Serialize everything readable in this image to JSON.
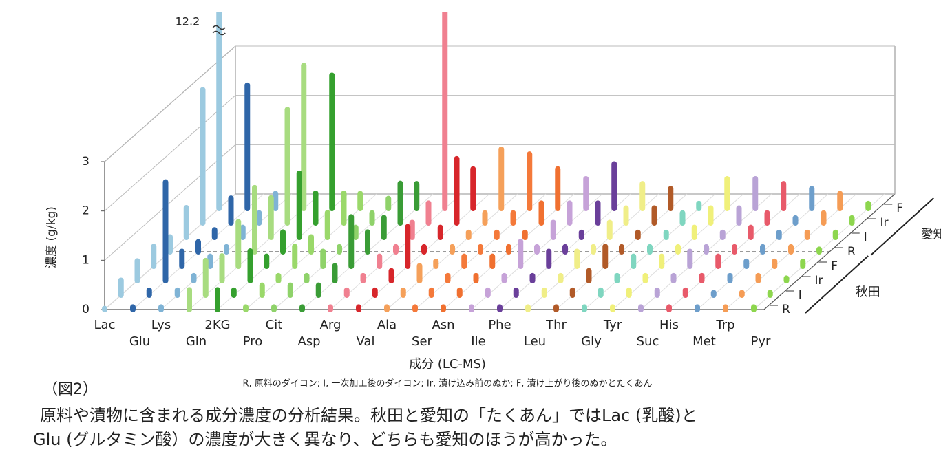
{
  "chart_data": {
    "type": "bar3d",
    "y_label": "濃度 (g/kg)",
    "x_label": "成分 (LC-MS)",
    "note": "R, 原料のダイコン; I, 一次加工後のダイコン; Ir, 漬け込み前のぬか; F, 漬け上がり後のぬかとたくあん",
    "categories": [
      "Lac",
      "Glu",
      "Lys",
      "Gln",
      "2KG",
      "Pro",
      "Cit",
      "Asp",
      "Arg",
      "Val",
      "Ala",
      "Ser",
      "Asn",
      "Ile",
      "Phe",
      "Leu",
      "Thr",
      "Gly",
      "Tyr",
      "Suc",
      "His",
      "Met",
      "Trp",
      "Pyr"
    ],
    "colors": [
      "#9ccae0",
      "#2f66a8",
      "#7fb3d5",
      "#a8dc80",
      "#35a02e",
      "#9ad86a",
      "#8fd26a",
      "#3a9c36",
      "#f08090",
      "#d7262b",
      "#f5a05a",
      "#f4793a",
      "#f07030",
      "#c6a2d8",
      "#6a3f9a",
      "#f0ee88",
      "#b15a28",
      "#7fd6c0",
      "#f0f07a",
      "#b9a3d6",
      "#e85a6a",
      "#6d9ecb",
      "#f59c55",
      "#8dd64e"
    ],
    "ylim": [
      0,
      3
    ],
    "yticks": [
      0,
      1,
      2,
      3
    ],
    "groups": [
      {
        "name": "秋田",
        "series": [
          {
            "name": "R",
            "values": [
              0.02,
              0.05,
              0.05,
              0.4,
              0.4,
              0.05,
              0.05,
              0.05,
              0.05,
              0.05,
              0.05,
              0.05,
              0.05,
              0.05,
              0.05,
              0.05,
              0.05,
              0.05,
              0.05,
              0.05,
              0.05,
              0.05,
              0.05,
              0.05
            ]
          },
          {
            "name": "I",
            "values": [
              0.3,
              0.1,
              0.1,
              0.7,
              0.1,
              0.2,
              0.2,
              0.2,
              0.1,
              0.1,
              0.1,
              0.1,
              0.1,
              0.1,
              0.1,
              0.1,
              0.1,
              0.1,
              0.1,
              0.1,
              0.1,
              0.05,
              0.05,
              0.05
            ]
          },
          {
            "name": "Ir",
            "values": [
              0.4,
              2.0,
              0.1,
              0.5,
              0.6,
              0.1,
              0.1,
              0.3,
              0.1,
              0.2,
              0.3,
              0.1,
              0.1,
              0.1,
              0.1,
              0.1,
              0.2,
              0.1,
              0.1,
              0.1,
              0.1,
              0.1,
              0.1,
              0.05
            ]
          },
          {
            "name": "F",
            "values": [
              0.4,
              0.3,
              0.2,
              0.9,
              0.2,
              0.4,
              0.3,
              1.0,
              0.2,
              0.8,
              0.1,
              0.2,
              0.2,
              0.5,
              0.3,
              0.3,
              0.4,
              0.2,
              0.2,
              0.3,
              0.2,
              0.1,
              0.1,
              0.1
            ]
          }
        ]
      },
      {
        "name": "愛知",
        "series": [
          {
            "name": "R",
            "values": [
              0.3,
              0.2,
              0.1,
              1.3,
              0.4,
              0.3,
              0.1,
              0.4,
              0.1,
              0.1,
              0.1,
              0.1,
              0.1,
              0.1,
              0.1,
              0.1,
              0.1,
              0.1,
              0.1,
              0.1,
              0.1,
              0.1,
              0.1,
              0.05
            ]
          },
          {
            "name": "I",
            "values": [
              0.6,
              0.15,
              0.2,
              0.8,
              1.3,
              0.5,
              0.2,
              0.4,
              0.3,
              0.2,
              0.1,
              0.1,
              0.1,
              0.3,
              0.1,
              0.3,
              0.1,
              0.1,
              0.2,
              0.1,
              0.2,
              0.1,
              0.1,
              0.1
            ]
          },
          {
            "name": "Ir",
            "values": [
              2.7,
              0.5,
              0.2,
              2.3,
              0.6,
              0.6,
              0.2,
              0.8,
              0.4,
              1.3,
              0.2,
              0.2,
              0.4,
              0.4,
              0.4,
              0.3,
              0.3,
              0.2,
              0.3,
              0.3,
              0.2,
              0.1,
              0.2,
              0.1
            ]
          },
          {
            "name": "F",
            "values": [
              12.2,
              2.5,
              0.3,
              2.9,
              2.7,
              0.3,
              0.2,
              0.5,
              4.2,
              0.8,
              1.2,
              1.1,
              0.8,
              0.6,
              0.9,
              0.5,
              0.4,
              0.1,
              0.6,
              0.6,
              0.5,
              0.4,
              0.3,
              0.1
            ],
            "value_labels": [
              "12.2",
              null,
              null,
              null,
              null,
              null,
              null,
              null,
              null,
              null,
              null,
              null,
              null,
              null,
              null,
              null,
              null,
              null,
              null,
              null,
              null,
              null,
              null,
              null
            ]
          }
        ]
      }
    ]
  },
  "caption": {
    "figure": "（図2）",
    "lines": [
      "原料や漬物に含まれる成分濃度の分析結果。秋田と愛知の「たくあん」ではLac (乳酸)と",
      "Glu (グルタミン酸）の濃度が大きく異なり、どちらも愛知のほうが高かった。"
    ]
  }
}
